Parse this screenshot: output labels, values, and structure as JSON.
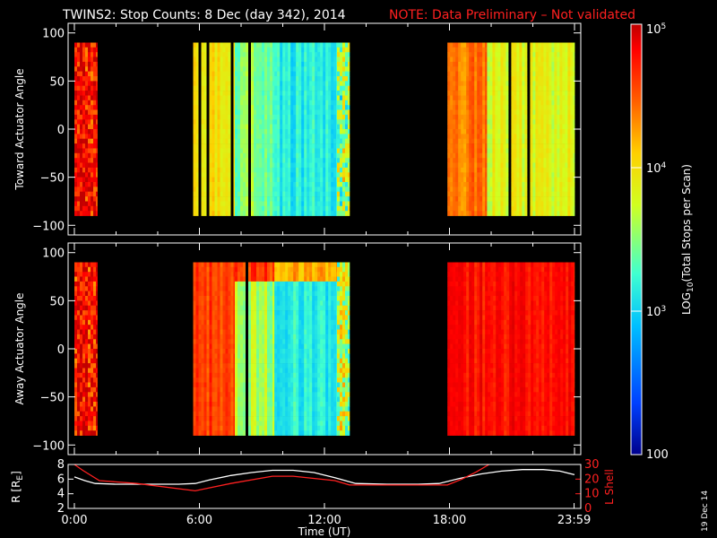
{
  "title": {
    "main": "TWINS2: Stop Counts:  8 Dec (day 342), 2014",
    "note": "NOTE: Data Preliminary – Not validated"
  },
  "date_stamp": "19 Dec 14",
  "colors": {
    "note": "#ff2020",
    "r_line": "#ffffff",
    "lshell_line": "#ff2020",
    "colormap": [
      "#00008c",
      "#0040ff",
      "#00c0ff",
      "#40ffd0",
      "#d0ff20",
      "#ffd000",
      "#ff6000",
      "#ff0000",
      "#c00000"
    ]
  },
  "colorbar": {
    "label": "LOG10(Total Stops per Scan)",
    "label_parts": [
      "LOG",
      "10",
      "(Total Stops per Scan)"
    ],
    "ticks": [
      {
        "value": 100,
        "text": "100"
      },
      {
        "value": 1000,
        "text": "10",
        "sup": "3"
      },
      {
        "value": 10000,
        "text": "10",
        "sup": "4"
      },
      {
        "value": 100000,
        "text": "10",
        "sup": "5"
      }
    ],
    "range": [
      100,
      100000
    ],
    "scale": "log"
  },
  "chart_data": [
    {
      "type": "heatmap",
      "ylabel": "Toward Actuator Angle",
      "yticks": [
        "100",
        "50",
        "0",
        "−50",
        "−100"
      ],
      "ytick_values": [
        100,
        50,
        0,
        -50,
        -100
      ],
      "ylim": [
        -110,
        110
      ],
      "xlim": [
        -0.3,
        24.3
      ],
      "data_y_range": [
        -90,
        90
      ],
      "segments": [
        {
          "start": 0.0,
          "end": 1.1,
          "profile": "noisy",
          "log_level": 4.7
        },
        {
          "start": 5.7,
          "end": 7.7,
          "profile": "green",
          "log_level": 3.8
        },
        {
          "start": 7.7,
          "end": 9.6,
          "profile": "cyan",
          "log_level": 3.3
        },
        {
          "start": 9.6,
          "end": 12.6,
          "profile": "blue",
          "log_level": 3.0
        },
        {
          "start": 12.6,
          "end": 13.2,
          "profile": "mixed",
          "log_level": 3.4
        },
        {
          "start": 17.9,
          "end": 19.8,
          "profile": "yellow",
          "log_level": 4.2
        },
        {
          "start": 19.8,
          "end": 24.0,
          "profile": "cyan",
          "log_level": 3.6
        }
      ]
    },
    {
      "type": "heatmap",
      "ylabel": "Away Actuator Angle",
      "yticks": [
        "100",
        "50",
        "0",
        "−50",
        "−100"
      ],
      "ytick_values": [
        100,
        50,
        0,
        -50,
        -100
      ],
      "ylim": [
        -110,
        110
      ],
      "xlim": [
        -0.3,
        24.3
      ],
      "data_y_range": [
        -90,
        90
      ],
      "segments": [
        {
          "start": 0.0,
          "end": 1.1,
          "profile": "noisy",
          "log_level": 4.6
        },
        {
          "start": 5.7,
          "end": 7.7,
          "profile": "orange",
          "log_level": 4.4
        },
        {
          "start": 7.7,
          "end": 9.6,
          "profile": "cyan",
          "log_level": 3.4
        },
        {
          "start": 9.6,
          "end": 12.6,
          "profile": "blue",
          "log_level": 3.0
        },
        {
          "start": 12.6,
          "end": 13.2,
          "profile": "mixed",
          "log_level": 3.5
        },
        {
          "start": 17.9,
          "end": 24.0,
          "profile": "orange",
          "log_level": 4.6
        }
      ]
    },
    {
      "type": "line",
      "xlabel": "Time (UT)",
      "xticks": [
        "0:00",
        "6:00",
        "12:00",
        "18:00",
        "23:59"
      ],
      "xtick_values": [
        0,
        6,
        12,
        18,
        23.98
      ],
      "xlim": [
        -0.3,
        24.3
      ],
      "left_axis": {
        "label": "R [RE]",
        "label_parts": [
          "R [R",
          "E",
          "]"
        ],
        "ticks": [
          "8",
          "6",
          "4",
          "2"
        ],
        "tick_values": [
          8,
          6,
          4,
          2
        ],
        "ylim": [
          2,
          8
        ]
      },
      "right_axis": {
        "label": "L Shell",
        "ticks": [
          "30",
          "20",
          "10",
          "0"
        ],
        "tick_values": [
          30,
          20,
          10,
          0
        ],
        "ylim": [
          0,
          30
        ]
      },
      "series": [
        {
          "name": "R [RE]",
          "axis": "left",
          "x": [
            0,
            0.5,
            1,
            2,
            3,
            4,
            5,
            5.8,
            6.5,
            7.5,
            8.5,
            9.5,
            10.5,
            11.5,
            12.5,
            13.5,
            15,
            16.5,
            17.5,
            18.5,
            19.5,
            20.5,
            21.5,
            22.5,
            23.3,
            24
          ],
          "y": [
            6.3,
            5.8,
            5.4,
            5.3,
            5.3,
            5.3,
            5.3,
            5.4,
            5.9,
            6.5,
            6.9,
            7.2,
            7.2,
            6.9,
            6.2,
            5.4,
            5.3,
            5.3,
            5.4,
            6.1,
            6.7,
            7.1,
            7.3,
            7.3,
            7.1,
            6.6
          ]
        },
        {
          "name": "L Shell",
          "axis": "right",
          "x": [
            0,
            0.4,
            1.2,
            3,
            5.8,
            7.5,
            9.5,
            10.5,
            12.5,
            13.2,
            15.5,
            17.9,
            18.6,
            19.3,
            19.9
          ],
          "y": [
            30,
            26,
            19,
            17,
            12,
            17,
            22,
            22,
            19,
            16,
            16,
            16,
            20,
            25,
            30
          ]
        }
      ]
    }
  ]
}
